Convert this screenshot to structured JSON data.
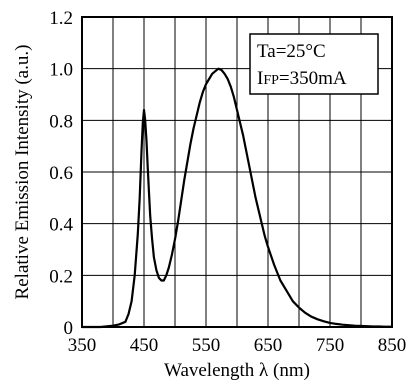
{
  "chart_data": {
    "type": "line",
    "xlabel": "Wavelength λ (nm)",
    "ylabel": "Relative Emission Intensity (a.u.)",
    "xlim": [
      350,
      850
    ],
    "ylim": [
      0,
      1.2
    ],
    "x_ticks": [
      "350",
      "450",
      "550",
      "650",
      "750",
      "850"
    ],
    "y_ticks": [
      "0",
      "0.2",
      "0.4",
      "0.6",
      "0.8",
      "1.0",
      "1.2"
    ],
    "x_grid_values": [
      350,
      400,
      450,
      500,
      550,
      600,
      650,
      700,
      750,
      800,
      850
    ],
    "y_grid_values": [
      0,
      0.2,
      0.4,
      0.6,
      0.8,
      1.0,
      1.2
    ],
    "grid": true,
    "legend_placement": "top-right",
    "annotations": {
      "line1": "Ta=25°C",
      "line2_main": "I",
      "line2_sub": "FP",
      "line2_rest": "=350mA"
    },
    "series": [
      {
        "x": [
          350,
          380,
          400,
          410,
          420,
          425,
          430,
          435,
          440,
          443,
          446,
          448,
          450,
          452,
          454,
          456,
          458,
          460,
          463,
          466,
          470,
          474,
          478,
          482,
          486,
          490,
          495,
          500,
          505,
          510,
          515,
          520,
          525,
          530,
          535,
          540,
          545,
          550,
          555,
          560,
          565,
          570,
          575,
          580,
          585,
          590,
          595,
          600,
          605,
          610,
          615,
          620,
          625,
          630,
          635,
          640,
          645,
          650,
          660,
          670,
          680,
          690,
          700,
          710,
          720,
          730,
          740,
          750,
          760,
          770,
          780,
          790,
          800,
          810,
          820,
          830,
          840,
          850
        ],
        "y": [
          0.0,
          0.0,
          0.005,
          0.01,
          0.02,
          0.05,
          0.1,
          0.2,
          0.36,
          0.5,
          0.68,
          0.79,
          0.84,
          0.8,
          0.72,
          0.62,
          0.52,
          0.43,
          0.34,
          0.27,
          0.22,
          0.19,
          0.18,
          0.18,
          0.2,
          0.23,
          0.28,
          0.34,
          0.41,
          0.49,
          0.57,
          0.64,
          0.71,
          0.77,
          0.82,
          0.87,
          0.91,
          0.94,
          0.96,
          0.98,
          0.99,
          1.0,
          0.995,
          0.98,
          0.96,
          0.93,
          0.89,
          0.84,
          0.79,
          0.74,
          0.68,
          0.62,
          0.56,
          0.5,
          0.45,
          0.4,
          0.35,
          0.31,
          0.24,
          0.18,
          0.14,
          0.1,
          0.075,
          0.055,
          0.04,
          0.03,
          0.022,
          0.016,
          0.012,
          0.009,
          0.007,
          0.005,
          0.004,
          0.003,
          0.002,
          0.002,
          0.001,
          0.001
        ]
      }
    ]
  }
}
